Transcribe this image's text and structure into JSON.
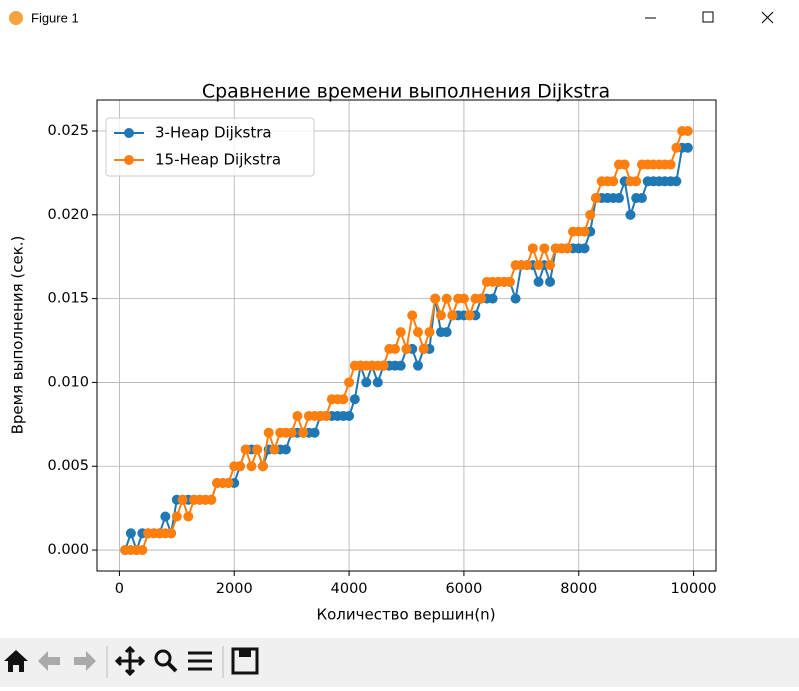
{
  "window": {
    "title": "Figure 1"
  },
  "chart_data": {
    "type": "line",
    "title": "Сравнение времени выполнения Dijkstra",
    "xlabel": "Количество вершин(n)",
    "ylabel": "Время выполнения (сек.)",
    "x": [
      100,
      200,
      300,
      400,
      500,
      600,
      700,
      800,
      900,
      1000,
      1100,
      1200,
      1300,
      1400,
      1500,
      1600,
      1700,
      1800,
      1900,
      2000,
      2100,
      2200,
      2300,
      2400,
      2500,
      2600,
      2700,
      2800,
      2900,
      3000,
      3100,
      3200,
      3300,
      3400,
      3500,
      3600,
      3700,
      3800,
      3900,
      4000,
      4100,
      4200,
      4300,
      4400,
      4500,
      4600,
      4700,
      4800,
      4900,
      5000,
      5100,
      5200,
      5300,
      5400,
      5500,
      5600,
      5700,
      5800,
      5900,
      6000,
      6100,
      6200,
      6300,
      6400,
      6500,
      6600,
      6700,
      6800,
      6900,
      7000,
      7100,
      7200,
      7300,
      7400,
      7500,
      7600,
      7700,
      7800,
      7900,
      8000,
      8100,
      8200,
      8300,
      8400,
      8500,
      8600,
      8700,
      8800,
      8900,
      9000,
      9100,
      9200,
      9300,
      9400,
      9500,
      9600,
      9700,
      9800,
      9900
    ],
    "series": [
      {
        "name": "3-Heap Dijkstra",
        "color": "#1f77b4",
        "values": [
          0,
          0.001,
          0,
          0.001,
          0.001,
          0.001,
          0.001,
          0.002,
          0.001,
          0.003,
          0.003,
          0.003,
          0.003,
          0.003,
          0.003,
          0.003,
          0.004,
          0.004,
          0.004,
          0.004,
          0.005,
          0.006,
          0.006,
          0.006,
          0.005,
          0.006,
          0.006,
          0.006,
          0.006,
          0.007,
          0.007,
          0.007,
          0.007,
          0.007,
          0.008,
          0.008,
          0.008,
          0.008,
          0.008,
          0.008,
          0.009,
          0.011,
          0.01,
          0.011,
          0.01,
          0.011,
          0.011,
          0.011,
          0.011,
          0.012,
          0.012,
          0.011,
          0.012,
          0.012,
          0.015,
          0.013,
          0.013,
          0.014,
          0.014,
          0.014,
          0.014,
          0.014,
          0.015,
          0.015,
          0.015,
          0.016,
          0.016,
          0.016,
          0.015,
          0.017,
          0.017,
          0.017,
          0.016,
          0.017,
          0.016,
          0.018,
          0.018,
          0.018,
          0.018,
          0.018,
          0.018,
          0.019,
          0.021,
          0.021,
          0.021,
          0.021,
          0.021,
          0.022,
          0.02,
          0.021,
          0.021,
          0.022,
          0.022,
          0.022,
          0.022,
          0.022,
          0.022,
          0.024,
          0.024
        ]
      },
      {
        "name": "15-Heap Dijkstra",
        "color": "#ff7f0e",
        "values": [
          0,
          0,
          0,
          0,
          0.001,
          0.001,
          0.001,
          0.001,
          0.001,
          0.002,
          0.003,
          0.002,
          0.003,
          0.003,
          0.003,
          0.003,
          0.004,
          0.004,
          0.004,
          0.005,
          0.005,
          0.006,
          0.005,
          0.006,
          0.005,
          0.007,
          0.006,
          0.007,
          0.007,
          0.007,
          0.008,
          0.007,
          0.008,
          0.008,
          0.008,
          0.008,
          0.009,
          0.009,
          0.009,
          0.01,
          0.011,
          0.011,
          0.011,
          0.011,
          0.011,
          0.011,
          0.012,
          0.012,
          0.013,
          0.012,
          0.014,
          0.013,
          0.012,
          0.013,
          0.015,
          0.014,
          0.015,
          0.014,
          0.015,
          0.015,
          0.014,
          0.015,
          0.015,
          0.016,
          0.016,
          0.016,
          0.016,
          0.016,
          0.017,
          0.017,
          0.017,
          0.018,
          0.017,
          0.018,
          0.017,
          0.018,
          0.018,
          0.018,
          0.019,
          0.019,
          0.019,
          0.02,
          0.021,
          0.022,
          0.022,
          0.022,
          0.023,
          0.023,
          0.022,
          0.022,
          0.023,
          0.023,
          0.023,
          0.023,
          0.023,
          0.023,
          0.024,
          0.025,
          0.025
        ]
      }
    ],
    "xlim": [
      -390,
      10390
    ],
    "ylim": [
      -0.00125,
      0.02685
    ],
    "xticks": [
      0,
      2000,
      4000,
      6000,
      8000,
      10000
    ],
    "yticks": [
      {
        "value": 0,
        "label": "0.000"
      },
      0.005,
      {
        "value": 0.01,
        "label": "0.010"
      },
      0.015,
      {
        "value": 0.02,
        "label": "0.020"
      },
      0.025
    ],
    "grid": true,
    "legend": "upper left"
  }
}
